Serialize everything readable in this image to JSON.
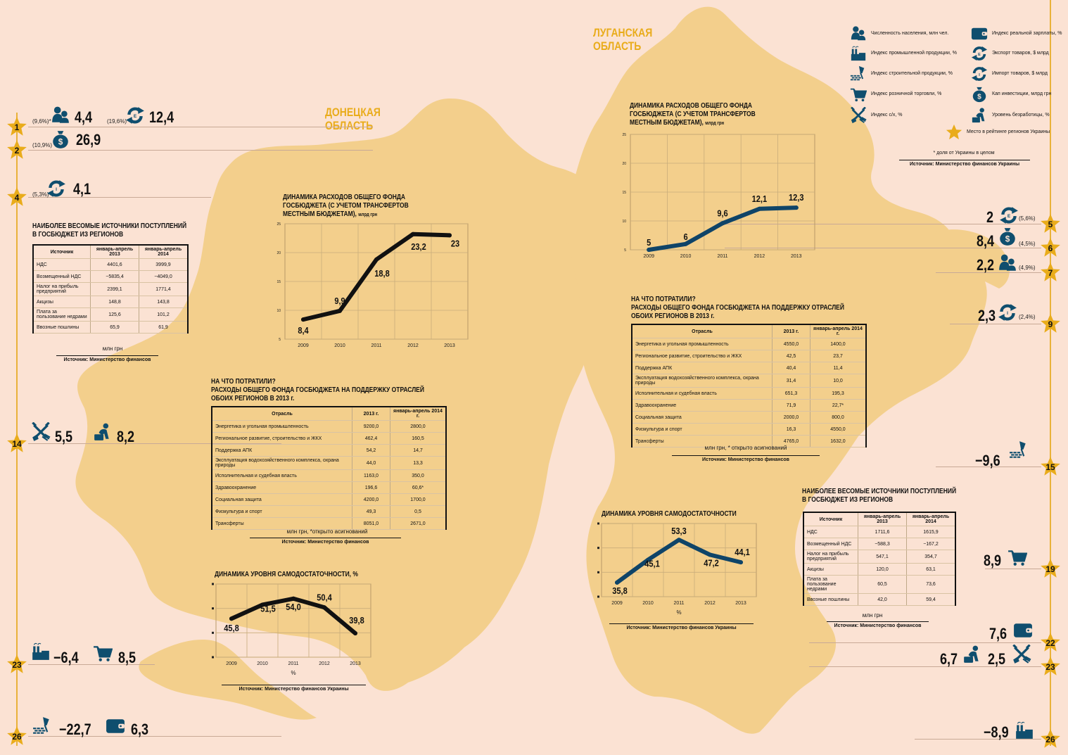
{
  "regions": {
    "donetsk": "ДОНЕЦКАЯ ОБЛАСТЬ",
    "donetsk_l1": "ДОНЕЦКАЯ",
    "donetsk_l2": "ОБЛАСТЬ",
    "luhansk_l1": "ЛУГАНСКАЯ",
    "luhansk_l2": "ОБЛАСТЬ"
  },
  "colors": {
    "background": "#fbe2d3",
    "map_fill": "#f3cf8c",
    "accent_gold": "#e9ac1b",
    "icon_blue": "#0f4e6e",
    "donetsk_line": "#111111",
    "luhansk_line": "#0f4468"
  },
  "legend": {
    "items": [
      {
        "icon": "population-icon",
        "label": "Численность населения, млн чел."
      },
      {
        "icon": "wallet-icon",
        "label": "Индекс реальной зарплаты, %"
      },
      {
        "icon": "factory-icon",
        "label": "Индекс промышленной продукции, %"
      },
      {
        "icon": "export-cycle-icon",
        "label": "Экспорт товаров, $ млрд"
      },
      {
        "icon": "construction-icon",
        "label": "Индекс строительной продукции, %"
      },
      {
        "icon": "import-cycle-icon",
        "label": "Импорт товаров, $ млрд"
      },
      {
        "icon": "cart-icon",
        "label": "Индекс розничной торговли, %"
      },
      {
        "icon": "money-bag-icon",
        "label": "Кап инвестиции, млрд грн"
      },
      {
        "icon": "agriculture-icon",
        "label": "Индекс с/х, %"
      },
      {
        "icon": "unemployed-icon",
        "label": "Уровень безработицы, %"
      },
      {
        "icon": "star-icon",
        "label": "Место в рейтинге регионов Украины"
      }
    ],
    "footnote": "* доля от Украины в целом",
    "source": "Источник: Министерство финансов Украины"
  },
  "donetsk_rankings": [
    {
      "rank": "1",
      "entries": [
        {
          "share": "(9,6%)*",
          "icon": "population-icon",
          "value": "4,4"
        },
        {
          "share": "(19,6%)",
          "icon": "export-cycle-icon",
          "value": "12,4"
        }
      ]
    },
    {
      "rank": "2",
      "entries": [
        {
          "share": "(10,9%)",
          "icon": "money-bag-icon",
          "value": "26,9"
        }
      ]
    },
    {
      "rank": "4",
      "entries": [
        {
          "share": "(5,3%)",
          "icon": "import-cycle-icon",
          "value": "4,1"
        }
      ]
    },
    {
      "rank": "14",
      "entries": [
        {
          "icon": "agriculture-icon",
          "value": "5,5"
        },
        {
          "icon": "unemployed-icon",
          "value": "8,2"
        }
      ]
    },
    {
      "rank": "23",
      "entries": [
        {
          "icon": "factory-icon",
          "value": "−6,4"
        },
        {
          "icon": "cart-icon",
          "value": "8,5"
        }
      ]
    },
    {
      "rank": "26",
      "entries": [
        {
          "icon": "construction-icon",
          "value": "−22,7"
        },
        {
          "icon": "wallet-icon",
          "value": "6,3"
        }
      ]
    }
  ],
  "luhansk_rankings": [
    {
      "rank": "5",
      "entries": [
        {
          "value": "2",
          "icon": "export-cycle-icon",
          "share": "(5,6%)"
        }
      ]
    },
    {
      "rank": "6",
      "entries": [
        {
          "value": "8,4",
          "icon": "money-bag-icon",
          "share": "(4,5%)"
        }
      ]
    },
    {
      "rank": "7",
      "entries": [
        {
          "value": "2,2",
          "icon": "population-icon",
          "share": "(4,9%)"
        }
      ]
    },
    {
      "rank": "9",
      "entries": [
        {
          "value": "2,3",
          "icon": "import-cycle-icon",
          "share": "(2,4%)"
        }
      ]
    },
    {
      "rank": "15",
      "entries": [
        {
          "value": "−9,6",
          "icon": "construction-icon"
        }
      ]
    },
    {
      "rank": "19",
      "entries": [
        {
          "value": "8,9",
          "icon": "cart-icon"
        }
      ]
    },
    {
      "rank": "22",
      "entries": [
        {
          "value": "7,6",
          "icon": "wallet-icon"
        }
      ]
    },
    {
      "rank": "23",
      "entries": [
        {
          "value": "6,7",
          "icon": "unemployed-icon"
        },
        {
          "value": "2,5",
          "icon": "agriculture-icon"
        }
      ]
    },
    {
      "rank": "26",
      "entries": [
        {
          "value": "−8,9",
          "icon": "factory-icon"
        }
      ]
    }
  ],
  "donetsk_revenue_table": {
    "title_l1": "НАИБОЛЕЕ ВЕСОМЫЕ ИСТОЧНИКИ ПОСТУПЛЕНИЙ",
    "title_l2": "В ГОСБЮДЖЕТ ИЗ РЕГИОНОВ",
    "headers": [
      "Источник",
      "январь-апрель 2013",
      "январь-апрель 2014"
    ],
    "rows": [
      [
        "НДС",
        "4401,6",
        "3999,9"
      ],
      [
        "Возмещенный НДС",
        "−5835,4",
        "−4049,0"
      ],
      [
        "Налог на прибыль предприятий",
        "2399,1",
        "1771,4"
      ],
      [
        "Акцизы",
        "148,8",
        "143,8"
      ],
      [
        "Плата за пользование недрами",
        "125,6",
        "101,2"
      ],
      [
        "Ввозные пошлины",
        "65,9",
        "61,9"
      ]
    ],
    "unit": "млн грн",
    "source": "Источник: Министерство финансов"
  },
  "donetsk_spending_table": {
    "title_l1": "НА ЧТО ПОТРАТИЛИ?",
    "title_l2": "РАСХОДЫ ОБЩЕГО ФОНДА ГОСБЮДЖЕТА НА ПОДДЕРЖКУ ОТРАСЛЕЙ",
    "title_l3": "ОБОИХ РЕГИОНОВ В 2013 г.",
    "headers": [
      "Отрасль",
      "2013 г.",
      "январь-апрель 2014 г."
    ],
    "rows": [
      [
        "Энергетика и угольная промышленность",
        "9200,0",
        "2800,0"
      ],
      [
        "Региональное развитие, строительство и ЖКХ",
        "462,4",
        "160,5"
      ],
      [
        "Поддержка АПК",
        "54,2",
        "14,7"
      ],
      [
        "Эксплуатация водохозяйственного комплекса, охрана природы",
        "44,0",
        "13,3"
      ],
      [
        "Исполнительная и судебная власть",
        "1163,0",
        "350,0"
      ],
      [
        "Здравоохранение",
        "196,6",
        "60,6*"
      ],
      [
        "Социальная защита",
        "4200,0",
        "1700,0"
      ],
      [
        "Физкультура и спорт",
        "49,3",
        "0,5"
      ],
      [
        "Трансферты",
        "8051,0",
        "2671,0"
      ]
    ],
    "unit": "млн грн, *открыто асигнований",
    "source": "Источник: Министерство финансов"
  },
  "luhansk_spending_table": {
    "title_l1": "НА ЧТО ПОТРАТИЛИ?",
    "title_l2": "РАСХОДЫ ОБЩЕГО ФОНДА ГОСБЮДЖЕТА НА ПОДДЕРЖКУ ОТРАСЛЕЙ",
    "title_l3": "ОБОИХ РЕГИОНОВ В 2013 г.",
    "headers": [
      "Отрасль",
      "2013 г.",
      "январь-апрель 2014 г."
    ],
    "rows": [
      [
        "Энергетика и угольная промышленность",
        "4550,0",
        "1400,0"
      ],
      [
        "Региональное развитие, строительство и ЖКХ",
        "42,5",
        "23,7"
      ],
      [
        "Поддержка АПК",
        "40,4",
        "11,4"
      ],
      [
        "Эксплуатация водохозяйственного комплекса, охрана природы",
        "31,4",
        "10,0"
      ],
      [
        "Исполнительная и судебная власть",
        "651,3",
        "195,3"
      ],
      [
        "Здравоохранение",
        "71,9",
        "22,7*"
      ],
      [
        "Социальная защита",
        "2000,0",
        "800,0"
      ],
      [
        "Физкультура и спорт",
        "16,3",
        "4550,0"
      ],
      [
        "Трансферты",
        "4765,0",
        "1632,0"
      ]
    ],
    "unit": "млн грн, * открыто асигнований",
    "source": "Источник: Министерство финансов"
  },
  "luhansk_revenue_table": {
    "title_l1": "НАИБОЛЕЕ ВЕСОМЫЕ ИСТОЧНИКИ ПОСТУПЛЕНИЙ",
    "title_l2": "В ГОСБЮДЖЕТ ИЗ РЕГИОНОВ",
    "headers": [
      "Источник",
      "январь-апрель 2013",
      "январь-апрель 2014"
    ],
    "rows": [
      [
        "НДС",
        "1711,6",
        "1615,9"
      ],
      [
        "Возмещенный НДС",
        "−588,3",
        "−167,2"
      ],
      [
        "Налог на прибыль предприятий",
        "547,1",
        "354,7"
      ],
      [
        "Акцизы",
        "120,0",
        "63,1"
      ],
      [
        "Плата за пользование недрами",
        "60,5",
        "73,6"
      ],
      [
        "Ввозные пошлины",
        "42,0",
        "59,4"
      ]
    ],
    "unit": "млн грн",
    "source": "Источник: Министерство финансов"
  },
  "chart_data": [
    {
      "id": "donetsk_expenditure",
      "type": "line",
      "title": "ДИНАМИКА РАСХОДОВ ОБЩЕГО ФОНДА ГОСБЮДЖЕТА (С УЧЕТОМ ТРАНСФЕРТОВ МЕСТНЫМ БЮДЖЕТАМ), млрд грн",
      "title_l1": "ДИНАМИКА РАСХОДОВ ОБЩЕГО ФОНДА",
      "title_l2": "ГОСБЮДЖЕТА (С УЧЕТОМ ТРАНСФЕРТОВ",
      "title_l3": "МЕСТНЫМ БЮДЖЕТАМ),",
      "unit": "млрд грн",
      "categories": [
        "2009",
        "2010",
        "2011",
        "2012",
        "2013"
      ],
      "values": [
        8.4,
        9.9,
        18.8,
        23.2,
        23
      ],
      "labels": [
        "8,4",
        "9,9",
        "18,8",
        "23,2",
        "23"
      ],
      "yticks": [
        "5",
        "10",
        "15",
        "20",
        "25"
      ],
      "ylim": [
        5,
        25
      ],
      "grid": true,
      "color": "#111111"
    },
    {
      "id": "donetsk_selfsufficiency",
      "type": "line",
      "title": "ДИНАМИКА УРОВНЯ САМОДОСТАТОЧНОСТИ, %",
      "xlabel": "%",
      "categories": [
        "2009",
        "2010",
        "2011",
        "2012",
        "2013"
      ],
      "values": [
        45.8,
        51.5,
        54.0,
        50.4,
        39.8
      ],
      "labels": [
        "45,8",
        "51,5",
        "54,0",
        "50,4",
        "39,8"
      ],
      "ylim": [
        30,
        60
      ],
      "grid": true,
      "color": "#111111",
      "source": "Источник: Министерство финансов Украины"
    },
    {
      "id": "luhansk_expenditure",
      "type": "line",
      "title": "ДИНАМИКА РАСХОДОВ ОБЩЕГО ФОНДА ГОСБЮДЖЕТА (С УЧЕТОМ ТРАНСФЕРТОВ МЕСТНЫМ БЮДЖЕТАМ), млрд грн",
      "title_l1": "ДИНАМИКА РАСХОДОВ ОБЩЕГО ФОНДА",
      "title_l2": "ГОСБЮДЖЕТА (С УЧЕТОМ ТРАНСФЕРТОВ",
      "title_l3": "МЕСТНЫМ БЮДЖЕТАМ),",
      "unit": "млрд грн",
      "categories": [
        "2009",
        "2010",
        "2011",
        "2012",
        "2013"
      ],
      "values": [
        5,
        6,
        9.6,
        12.1,
        12.3
      ],
      "labels": [
        "5",
        "6",
        "9,6",
        "12,1",
        "12,3"
      ],
      "yticks": [
        "5",
        "10",
        "15",
        "20",
        "25"
      ],
      "ylim": [
        5,
        25
      ],
      "grid": true,
      "color": "#0f4468"
    },
    {
      "id": "luhansk_selfsufficiency",
      "type": "line",
      "title": "ДИНАМИКА УРОВНЯ САМОДОСТАТОЧНОСТИ",
      "xlabel": "%",
      "categories": [
        "2009",
        "2010",
        "2011",
        "2012",
        "2013"
      ],
      "values": [
        35.8,
        45.1,
        53.3,
        47.2,
        44.1
      ],
      "labels": [
        "35,8",
        "45,1",
        "53,3",
        "47,2",
        "44,1"
      ],
      "ylim": [
        30,
        60
      ],
      "grid": true,
      "color": "#0f4468",
      "source": "Источник: Министерство финансов Украины"
    }
  ]
}
